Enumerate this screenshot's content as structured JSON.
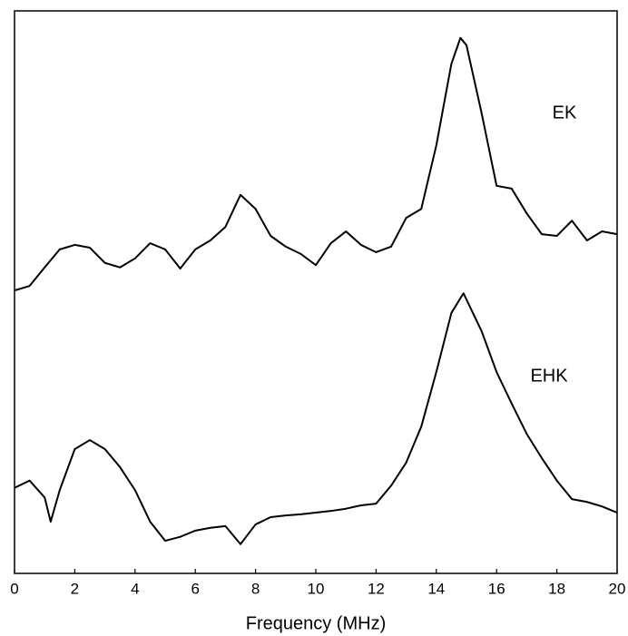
{
  "chart_data": {
    "type": "line",
    "x_label": "Frequency (MHz)",
    "xlim": [
      0,
      20
    ],
    "xticks": [
      0,
      2,
      4,
      6,
      8,
      10,
      12,
      14,
      16,
      18,
      20
    ],
    "ylim": [
      0,
      100
    ],
    "series": [
      {
        "name": "EK",
        "color": "#000000",
        "x": [
          0,
          0.5,
          1,
          1.5,
          2,
          2.5,
          3,
          3.5,
          4,
          4.5,
          5,
          5.5,
          6,
          6.5,
          7,
          7.5,
          8,
          8.5,
          9,
          9.5,
          10,
          10.5,
          11,
          11.5,
          12,
          12.5,
          13,
          13.5,
          14,
          14.5,
          14.8,
          15,
          15.5,
          16,
          16.5,
          17,
          17.5,
          18,
          18.5,
          19,
          19.5,
          20
        ],
        "values": [
          50.3,
          51.1,
          54.4,
          57.6,
          58.4,
          57.9,
          55.2,
          54.4,
          56.0,
          58.7,
          57.6,
          54.2,
          57.6,
          59.2,
          61.6,
          67.3,
          64.8,
          60.0,
          58.1,
          56.8,
          54.8,
          58.7,
          60.8,
          58.4,
          57.1,
          58.1,
          63.2,
          64.8,
          76.1,
          90.6,
          95.2,
          93.9,
          81.9,
          68.9,
          68.4,
          64.0,
          60.3,
          60.0,
          62.7,
          59.2,
          60.8,
          60.3
        ]
      },
      {
        "name": "EHK",
        "color": "#000000",
        "x": [
          0,
          0.5,
          1,
          1.2,
          1.5,
          2,
          2.5,
          3,
          3.5,
          4,
          4.5,
          5,
          5.5,
          6,
          6.5,
          7,
          7.5,
          8,
          8.5,
          9,
          9.5,
          10,
          10.5,
          11,
          11.5,
          12,
          12.5,
          13,
          13.5,
          14,
          14.5,
          14.9,
          15.5,
          16,
          16.5,
          17,
          17.5,
          18,
          18.5,
          19,
          19.5,
          20
        ],
        "values": [
          15.2,
          16.5,
          13.5,
          9.2,
          14.8,
          22.1,
          23.7,
          22.1,
          18.9,
          14.8,
          9.2,
          5.8,
          6.5,
          7.6,
          8.1,
          8.4,
          5.2,
          8.7,
          10.0,
          10.3,
          10.5,
          10.8,
          11.1,
          11.5,
          12.1,
          12.4,
          15.6,
          19.7,
          26.1,
          35.8,
          46.3,
          49.8,
          43.1,
          35.8,
          30.2,
          24.8,
          20.5,
          16.5,
          13.2,
          12.7,
          11.9,
          10.8
        ]
      }
    ]
  }
}
